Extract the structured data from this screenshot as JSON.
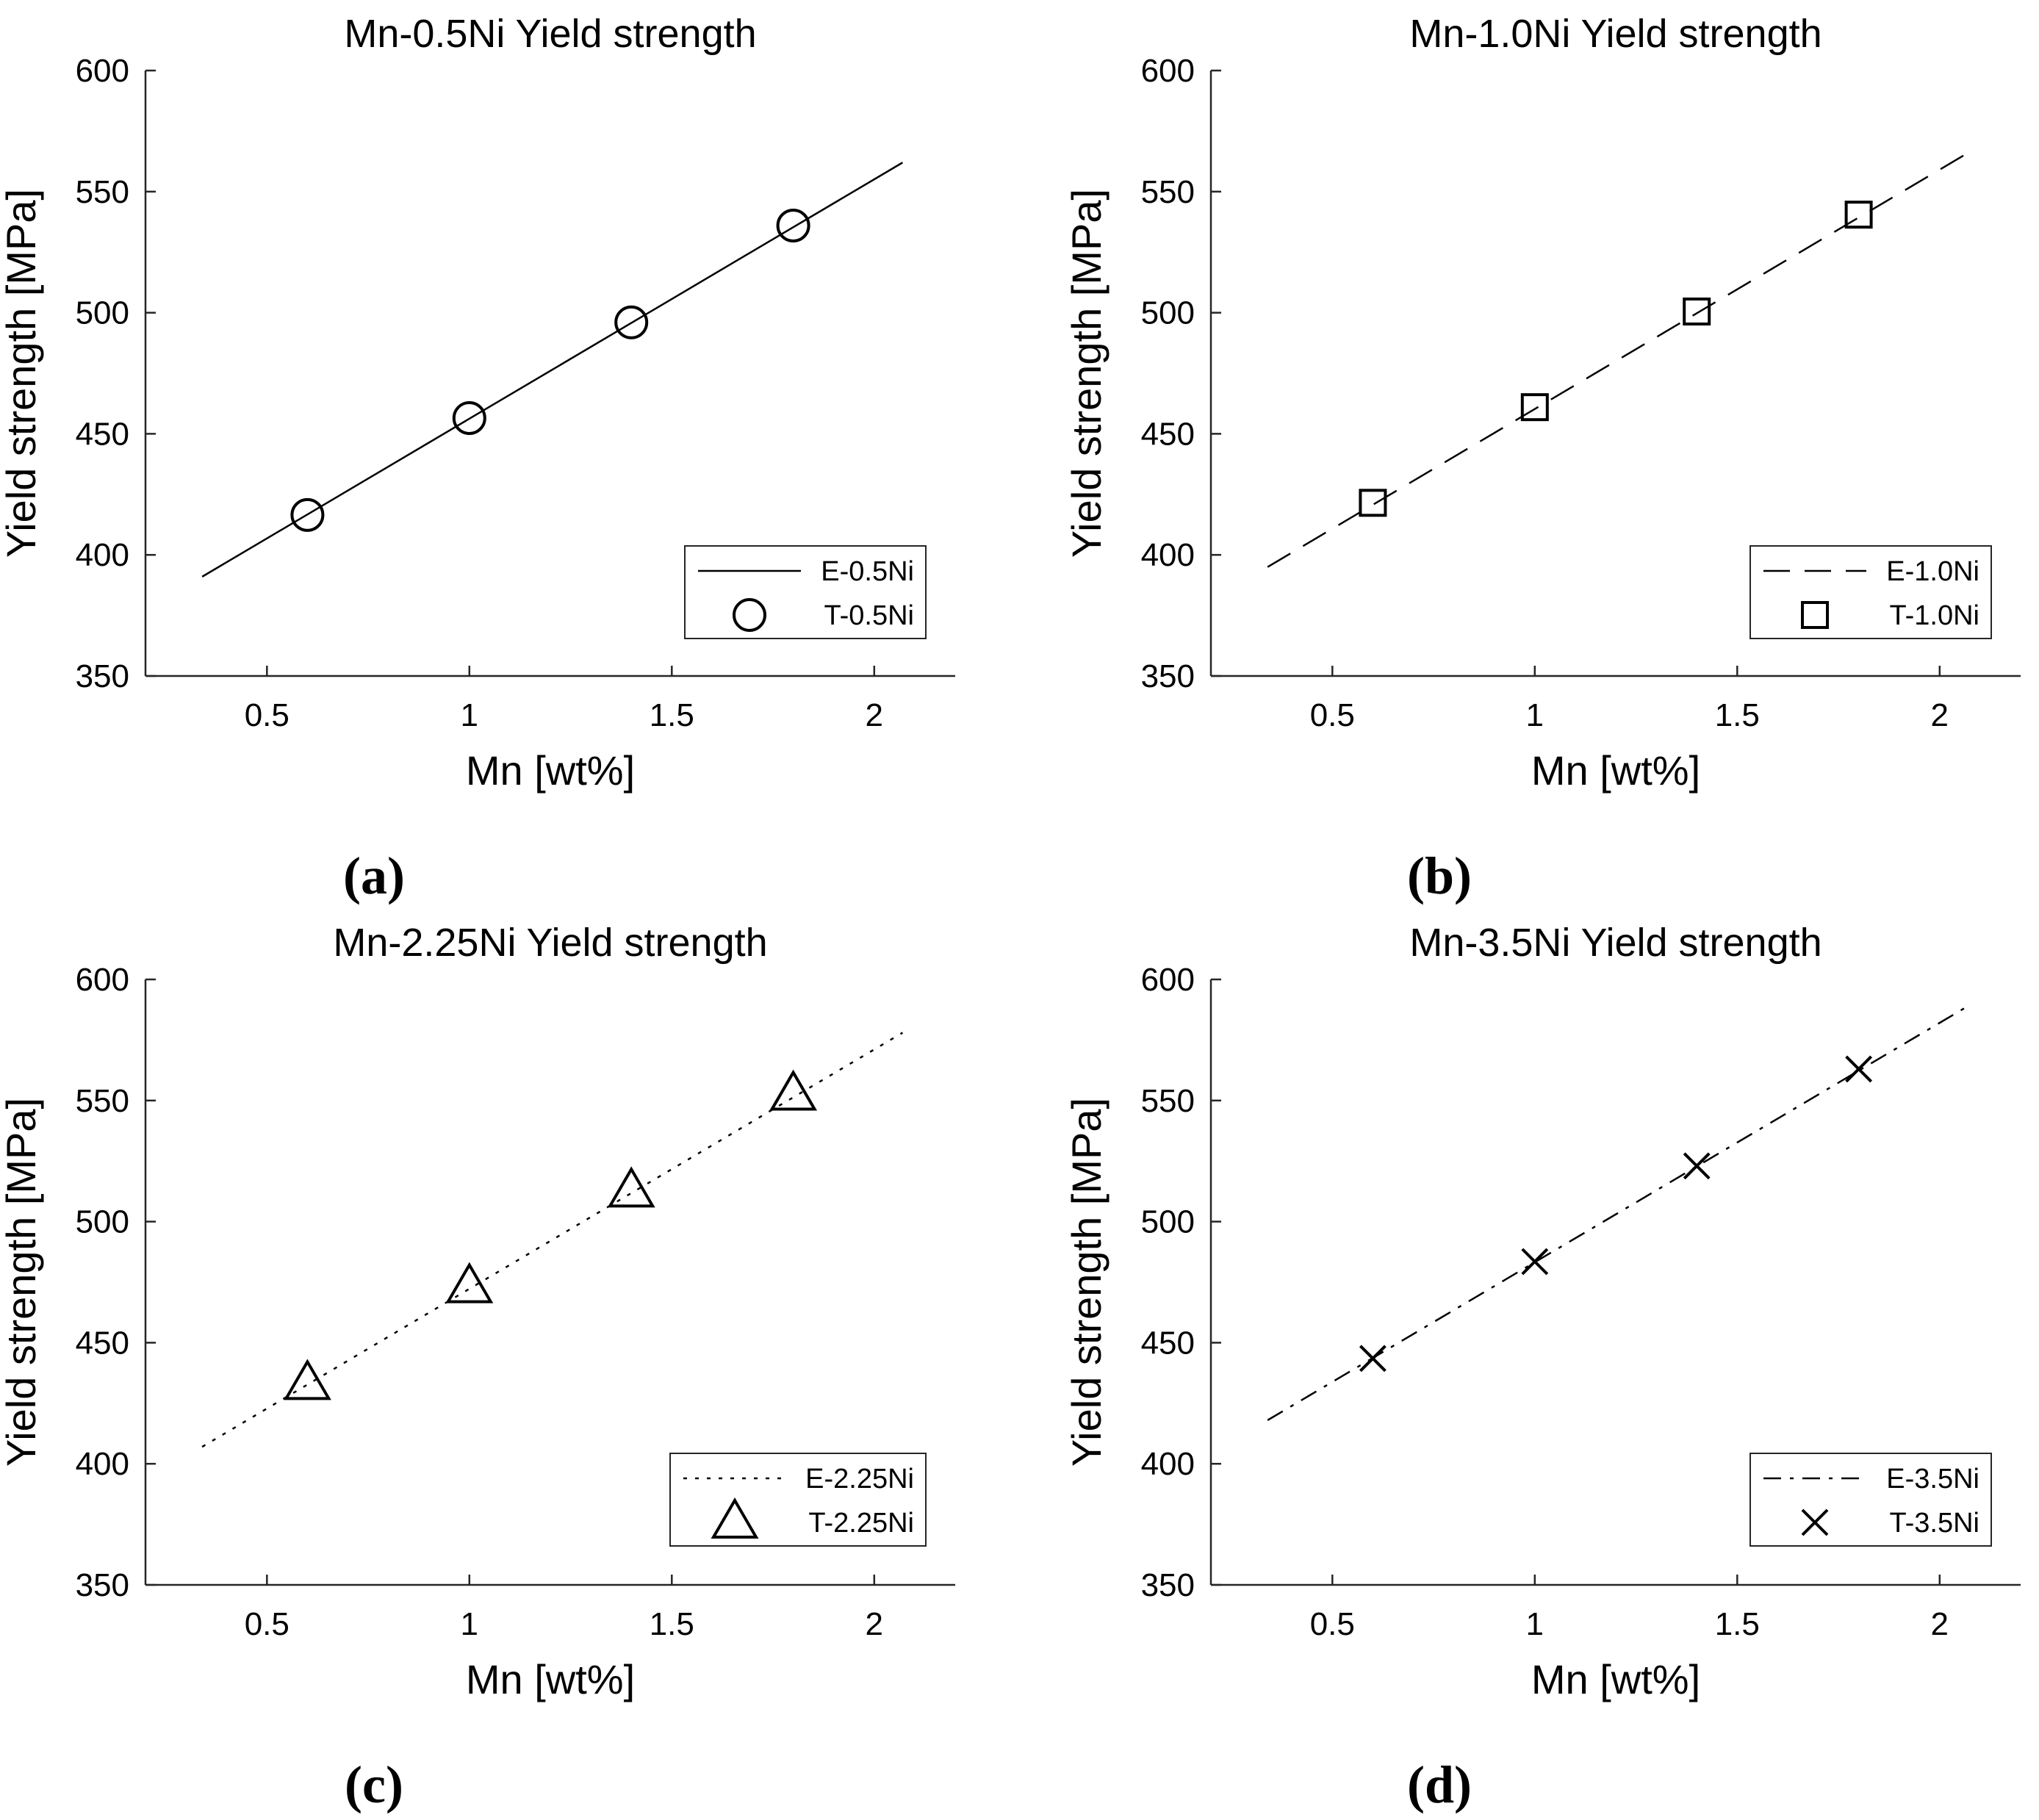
{
  "chart_data": [
    {
      "id": "a",
      "type": "line",
      "panel_label": "(a)",
      "title": "Mn-0.5Ni Yield strength",
      "xlabel": "Mn [wt%]",
      "ylabel": "Yield strength [MPa]",
      "xlim": [
        0.2,
        2.2
      ],
      "ylim": [
        350,
        600
      ],
      "xticks": [
        0.5,
        1,
        1.5,
        2
      ],
      "xtick_labels": [
        "0.5",
        "1",
        "1.5",
        "2"
      ],
      "yticks": [
        350,
        400,
        450,
        500,
        550,
        600
      ],
      "ytick_labels": [
        "350",
        "400",
        "450",
        "500",
        "550",
        "600"
      ],
      "legend_position": "bottom-right",
      "series": [
        {
          "name": "E-0.5Ni",
          "kind": "line",
          "style": "solid",
          "x": [
            0.34,
            2.07
          ],
          "y": [
            391,
            562
          ]
        },
        {
          "name": "T-0.5Ni",
          "kind": "marker",
          "marker": "circle",
          "x": [
            0.6,
            1.0,
            1.4,
            1.8
          ],
          "y": [
            416.5,
            456.5,
            496,
            536
          ]
        }
      ]
    },
    {
      "id": "b",
      "type": "line",
      "panel_label": "(b)",
      "title": "Mn-1.0Ni Yield strength",
      "xlabel": "Mn [wt%]",
      "ylabel": "Yield strength [MPa]",
      "xlim": [
        0.2,
        2.2
      ],
      "ylim": [
        350,
        600
      ],
      "xticks": [
        0.5,
        1,
        1.5,
        2
      ],
      "xtick_labels": [
        "0.5",
        "1",
        "1.5",
        "2"
      ],
      "yticks": [
        350,
        400,
        450,
        500,
        550,
        600
      ],
      "ytick_labels": [
        "350",
        "400",
        "450",
        "500",
        "550",
        "600"
      ],
      "legend_position": "bottom-right",
      "series": [
        {
          "name": "E-1.0Ni",
          "kind": "line",
          "style": "dashed",
          "x": [
            0.34,
            2.07
          ],
          "y": [
            395,
            566
          ]
        },
        {
          "name": "T-1.0Ni",
          "kind": "marker",
          "marker": "square",
          "x": [
            0.6,
            1.0,
            1.4,
            1.8
          ],
          "y": [
            421.5,
            461,
            500.5,
            540.5
          ]
        }
      ]
    },
    {
      "id": "c",
      "type": "line",
      "panel_label": "(c)",
      "title": "Mn-2.25Ni Yield strength",
      "xlabel": "Mn [wt%]",
      "ylabel": "Yield strength [MPa]",
      "xlim": [
        0.2,
        2.2
      ],
      "ylim": [
        350,
        600
      ],
      "xticks": [
        0.5,
        1,
        1.5,
        2
      ],
      "xtick_labels": [
        "0.5",
        "1",
        "1.5",
        "2"
      ],
      "yticks": [
        350,
        400,
        450,
        500,
        550,
        600
      ],
      "ytick_labels": [
        "350",
        "400",
        "450",
        "500",
        "550",
        "600"
      ],
      "legend_position": "bottom-right",
      "series": [
        {
          "name": "E-2.25Ni",
          "kind": "line",
          "style": "dotted",
          "x": [
            0.34,
            2.07
          ],
          "y": [
            407,
            578
          ]
        },
        {
          "name": "T-2.25Ni",
          "kind": "marker",
          "marker": "triangle",
          "x": [
            0.6,
            1.0,
            1.4,
            1.8
          ],
          "y": [
            433,
            473,
            512.5,
            552.5
          ]
        }
      ]
    },
    {
      "id": "d",
      "type": "line",
      "panel_label": "(d)",
      "title": "Mn-3.5Ni Yield strength",
      "xlabel": "Mn [wt%]",
      "ylabel": "Yield strength [MPa]",
      "xlim": [
        0.2,
        2.2
      ],
      "ylim": [
        350,
        600
      ],
      "xticks": [
        0.5,
        1,
        1.5,
        2
      ],
      "xtick_labels": [
        "0.5",
        "1",
        "1.5",
        "2"
      ],
      "yticks": [
        350,
        400,
        450,
        500,
        550,
        600
      ],
      "ytick_labels": [
        "350",
        "400",
        "450",
        "500",
        "550",
        "600"
      ],
      "legend_position": "bottom-right",
      "series": [
        {
          "name": "E-3.5Ni",
          "kind": "line",
          "style": "dashdot",
          "x": [
            0.34,
            2.07
          ],
          "y": [
            418,
            589
          ]
        },
        {
          "name": "T-3.5Ni",
          "kind": "marker",
          "marker": "cross",
          "x": [
            0.6,
            1.0,
            1.4,
            1.8
          ],
          "y": [
            443.5,
            483.5,
            523,
            563
          ]
        }
      ]
    }
  ]
}
